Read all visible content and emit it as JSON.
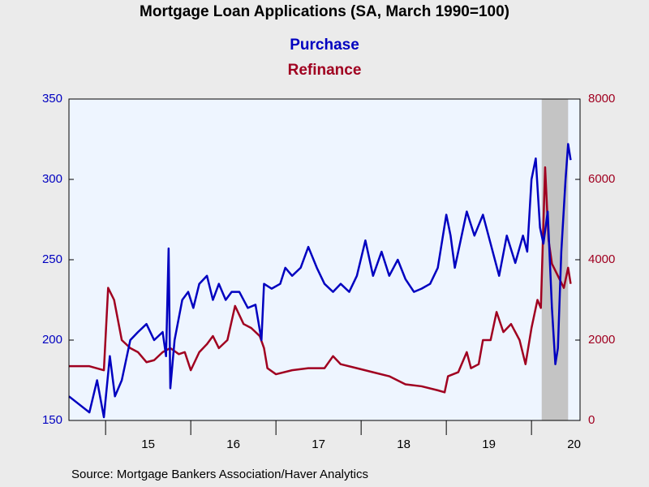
{
  "chart_data": {
    "type": "line",
    "title": "Mortgage Loan Applications (SA, March 1990=100)",
    "source": "Source:  Mortgage Bankers Association/Haver Analytics",
    "xlim": [
      2014.57,
      2020.57
    ],
    "xticks": [
      {
        "value": 2015,
        "label": "15"
      },
      {
        "value": 2016,
        "label": "16"
      },
      {
        "value": 2017,
        "label": "17"
      },
      {
        "value": 2018,
        "label": "18"
      },
      {
        "value": 2019,
        "label": "19"
      },
      {
        "value": 2020,
        "label": "20"
      }
    ],
    "ylim": [
      150,
      350
    ],
    "yticks": [
      150,
      200,
      250,
      300,
      350
    ],
    "y2lim": [
      0,
      8000
    ],
    "y2ticks": [
      0,
      2000,
      4000,
      6000,
      8000
    ],
    "shaded_region": [
      2020.12,
      2020.43
    ],
    "series": [
      {
        "name": "Purchase",
        "color": "#0000c0",
        "axis": "y",
        "x": [
          2014.57,
          2014.81,
          2014.9,
          2014.98,
          2015.05,
          2015.11,
          2015.19,
          2015.29,
          2015.38,
          2015.48,
          2015.57,
          2015.67,
          2015.71,
          2015.74,
          2015.76,
          2015.81,
          2015.9,
          2015.97,
          2016.03,
          2016.1,
          2016.19,
          2016.26,
          2016.33,
          2016.41,
          2016.48,
          2016.57,
          2016.67,
          2016.76,
          2016.83,
          2016.86,
          2016.95,
          2017.05,
          2017.11,
          2017.19,
          2017.29,
          2017.38,
          2017.48,
          2017.57,
          2017.67,
          2017.76,
          2017.86,
          2017.95,
          2018.05,
          2018.14,
          2018.24,
          2018.33,
          2018.43,
          2018.52,
          2018.62,
          2018.71,
          2018.81,
          2018.9,
          2019.0,
          2019.05,
          2019.1,
          2019.14,
          2019.24,
          2019.33,
          2019.43,
          2019.52,
          2019.62,
          2019.71,
          2019.81,
          2019.9,
          2019.95,
          2020.0,
          2020.05,
          2020.1,
          2020.14,
          2020.19,
          2020.24,
          2020.28,
          2020.31,
          2020.35,
          2020.4,
          2020.43,
          2020.46
        ],
        "values": [
          165,
          155,
          175,
          152,
          190,
          165,
          175,
          200,
          205,
          210,
          200,
          205,
          190,
          257,
          170,
          200,
          225,
          230,
          220,
          235,
          240,
          225,
          235,
          225,
          230,
          230,
          220,
          222,
          200,
          235,
          232,
          235,
          245,
          240,
          245,
          258,
          245,
          235,
          230,
          235,
          230,
          240,
          262,
          240,
          255,
          240,
          250,
          238,
          230,
          232,
          235,
          245,
          278,
          265,
          245,
          255,
          280,
          265,
          278,
          260,
          240,
          265,
          248,
          265,
          255,
          300,
          313,
          270,
          260,
          280,
          220,
          185,
          195,
          255,
          300,
          322,
          312
        ]
      },
      {
        "name": "Refinance",
        "color": "#a00020",
        "axis": "y2",
        "x": [
          2014.57,
          2014.81,
          2014.98,
          2015.03,
          2015.1,
          2015.19,
          2015.29,
          2015.38,
          2015.48,
          2015.57,
          2015.67,
          2015.76,
          2015.86,
          2015.93,
          2016.0,
          2016.1,
          2016.19,
          2016.26,
          2016.33,
          2016.43,
          2016.52,
          2016.62,
          2016.71,
          2016.81,
          2016.86,
          2016.9,
          2017.0,
          2017.19,
          2017.38,
          2017.57,
          2017.67,
          2017.76,
          2017.95,
          2018.14,
          2018.33,
          2018.52,
          2018.71,
          2018.9,
          2018.98,
          2019.02,
          2019.14,
          2019.24,
          2019.29,
          2019.38,
          2019.43,
          2019.52,
          2019.59,
          2019.67,
          2019.76,
          2019.86,
          2019.93,
          2020.0,
          2020.07,
          2020.11,
          2020.16,
          2020.2,
          2020.24,
          2020.31,
          2020.38,
          2020.43,
          2020.46
        ],
        "values": [
          1350,
          1350,
          1250,
          3300,
          3000,
          2000,
          1800,
          1700,
          1450,
          1500,
          1700,
          1800,
          1650,
          1700,
          1250,
          1700,
          1900,
          2100,
          1800,
          2000,
          2850,
          2400,
          2300,
          2100,
          1800,
          1300,
          1150,
          1250,
          1300,
          1300,
          1600,
          1400,
          1300,
          1200,
          1100,
          900,
          850,
          750,
          700,
          1100,
          1200,
          1700,
          1300,
          1400,
          2000,
          2000,
          2700,
          2200,
          2400,
          2000,
          1400,
          2300,
          3000,
          2800,
          6300,
          4500,
          3900,
          3600,
          3300,
          3800,
          3400
        ]
      }
    ]
  }
}
